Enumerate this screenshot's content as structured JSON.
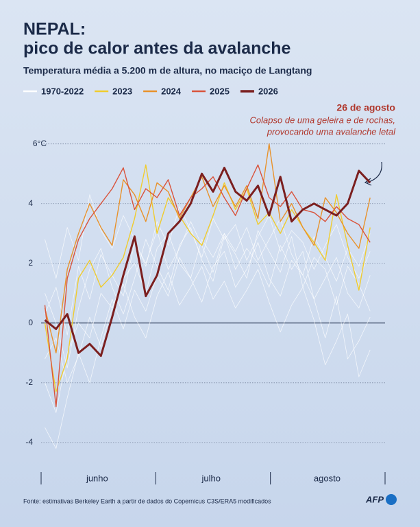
{
  "chart_data": {
    "type": "line",
    "title": [
      "NEPAL:",
      "pico de calor antes da avalanche"
    ],
    "subtitle": "Temperatura média a 5.200 m de altura, no maciço de Langtang",
    "x": [
      1,
      4,
      7,
      10,
      13,
      16,
      19,
      22,
      25,
      28,
      31,
      34,
      37,
      40,
      43,
      46,
      49,
      52,
      55,
      58,
      61,
      64,
      67,
      70,
      73,
      76,
      79,
      82,
      85,
      88
    ],
    "xlim": [
      0,
      92
    ],
    "xticks": [
      {
        "value": 15,
        "label": "junho"
      },
      {
        "value": 45.5,
        "label": "julho"
      },
      {
        "value": 76.5,
        "label": "agosto"
      }
    ],
    "ylim": [
      -4.9,
      6.2
    ],
    "yticks": [
      -4,
      -2,
      0,
      2,
      4,
      {
        "value": 6,
        "label": "6°C"
      }
    ],
    "grid": true,
    "series": [
      {
        "name": "1970-2022",
        "color": "#ffffff",
        "values": [
          [
            -2,
            -3,
            -1,
            0,
            -0.5,
            1,
            0.5,
            1.5,
            2,
            1,
            2.5,
            3,
            2,
            1.5,
            2.8,
            2.2,
            3,
            1.8,
            2.5,
            2,
            1.2,
            2.6,
            1.8,
            2.4,
            0.8,
            1.5,
            2.2,
            1,
            0.5,
            1.6
          ],
          [
            1,
            0,
            -1.5,
            0.5,
            1.8,
            2.5,
            1.2,
            0.3,
            1.5,
            2.8,
            1.9,
            1.1,
            2.6,
            3.2,
            2.1,
            1.4,
            2.9,
            2.3,
            1.5,
            3.1,
            2.4,
            1.7,
            2.9,
            1.2,
            2.2,
            1.8,
            0.6,
            1.9,
            1.3,
            0.4
          ],
          [
            -3.5,
            -4.2,
            -2.5,
            -1,
            -2,
            -0.5,
            0.8,
            -0.2,
            1.1,
            0.4,
            1.6,
            0.9,
            2.2,
            1.5,
            0.7,
            1.9,
            2.4,
            1.2,
            1.8,
            2.7,
            1.5,
            0.9,
            2.1,
            1.6,
            0.8,
            -0.5,
            0.9,
            -1.2,
            -0.6,
            0.2
          ],
          [
            2.8,
            1.5,
            3.2,
            2.1,
            4.3,
            3.1,
            2.5,
            3.6,
            2.8,
            1.9,
            3.4,
            2.6,
            3.9,
            3.1,
            2.2,
            3.5,
            2.8,
            3.3,
            2.1,
            2.9,
            3.6,
            2.4,
            3.1,
            2.7,
            1.8,
            2.6,
            3.3,
            2.2,
            1.5,
            2.4
          ],
          [
            -1.2,
            -0.5,
            -2,
            -1.1,
            0.2,
            -0.8,
            0.5,
            1.3,
            0.2,
            -0.5,
            0.9,
            1.7,
            0.6,
            1.2,
            1.9,
            0.8,
            1.4,
            0.5,
            1.1,
            1.8,
            0.7,
            -0.3,
            0.6,
            1.2,
            0.1,
            -1.4,
            -0.6,
            0.3,
            -1.8,
            -0.9
          ],
          [
            0.3,
            1.2,
            -0.4,
            1.9,
            0.8,
            2.3,
            1.6,
            0.9,
            2.7,
            2,
            3.1,
            1.8,
            2.5,
            3.4,
            2.6,
            1.7,
            3,
            2.4,
            3.2,
            2.1,
            2.8,
            3.5,
            2.3,
            1.6,
            2.9,
            2.2,
            1.4,
            2.5,
            1.9,
            3
          ]
        ]
      },
      {
        "name": "2023",
        "color": "#f0cc2e",
        "values": [
          0,
          -2.3,
          -1.2,
          1.5,
          2.1,
          1.2,
          1.6,
          2.2,
          3.5,
          5.3,
          3,
          4.2,
          3.6,
          3,
          2.6,
          3.6,
          4.7,
          3.8,
          4.5,
          3.3,
          3.7,
          3,
          3.8,
          3.2,
          2.7,
          2.1,
          4.3,
          2.6,
          1.1,
          3.2
        ]
      },
      {
        "name": "2024",
        "color": "#e8922b",
        "values": [
          0.5,
          -1,
          1.8,
          3,
          4,
          3.2,
          2.6,
          4.8,
          4.3,
          3.4,
          4.7,
          4.4,
          3.5,
          4.2,
          4.9,
          3.9,
          4.6,
          3.9,
          4.6,
          3.5,
          6,
          3.4,
          4,
          3.2,
          2.6,
          4.2,
          3.7,
          3,
          2.5,
          4.2
        ]
      },
      {
        "name": "2025",
        "color": "#d9543c",
        "values": [
          0.6,
          -2.8,
          1.5,
          2.8,
          3.5,
          4,
          4.5,
          5.2,
          3.8,
          4.5,
          4.2,
          4.8,
          3.6,
          4.2,
          4.5,
          4.9,
          4.2,
          3.6,
          4.5,
          5.3,
          4.2,
          3.9,
          4.4,
          3.8,
          3.7,
          3.4,
          3.9,
          3.5,
          3.3,
          2.7
        ]
      },
      {
        "name": "2026",
        "color": "#7b1f1f",
        "values": [
          0.1,
          -0.2,
          0.3,
          -1,
          -0.7,
          -1.1,
          0.2,
          1.6,
          2.9,
          0.9,
          1.6,
          3,
          3.4,
          4,
          5,
          4.4,
          5.2,
          4.4,
          4.1,
          4.6,
          3.6,
          4.9,
          3.4,
          3.8,
          4,
          3.8,
          3.6,
          4,
          5.1,
          4.7
        ]
      }
    ],
    "annotation": {
      "title": "26 de agosto",
      "text": [
        "Colapso de uma geleira e de rochas,",
        "provocando uma avalanche letal"
      ]
    },
    "source": "Fonte: estimativas Berkeley Earth a partir de dados do Copernicus C3S/ERA5 modificados",
    "logo": "AFP"
  }
}
